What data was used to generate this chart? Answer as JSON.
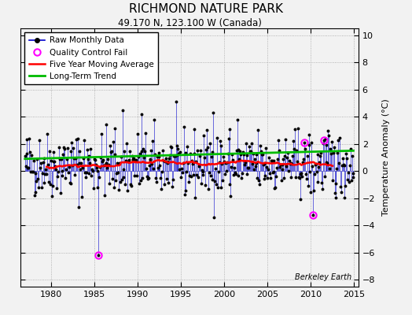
{
  "title": "RICHMOND NATURE PARK",
  "subtitle": "49.170 N, 123.100 W (Canada)",
  "ylabel": "Temperature Anomaly (°C)",
  "watermark": "Berkeley Earth",
  "xlim": [
    1976.5,
    2015.5
  ],
  "ylim": [
    -8.5,
    10.5
  ],
  "yticks": [
    -8,
    -6,
    -4,
    -2,
    0,
    2,
    4,
    6,
    8,
    10
  ],
  "xticks": [
    1980,
    1985,
    1990,
    1995,
    2000,
    2005,
    2010,
    2015
  ],
  "background_color": "#f2f2f2",
  "raw_color": "#0000cc",
  "qc_color": "#ff00ff",
  "moving_avg_color": "#ff0000",
  "trend_color": "#00bb00",
  "start_year": 1977,
  "n_months": 456,
  "seed": 42
}
